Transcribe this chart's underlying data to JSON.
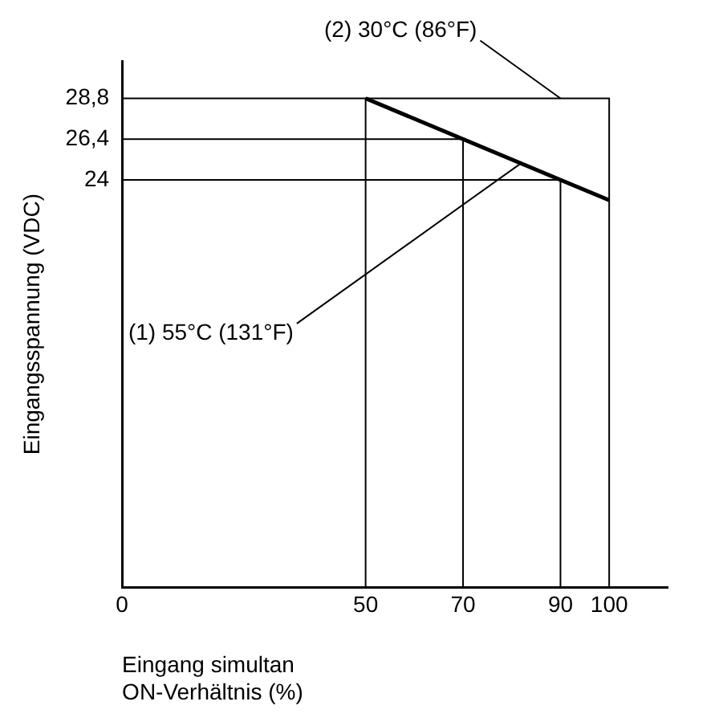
{
  "chart_data": {
    "type": "line",
    "xlabel": "Eingang simultan\nON-Verhältnis (%)",
    "ylabel": "Eingangsspannung (VDC)",
    "series": [
      {
        "color": "#000000",
        "x": [
          50,
          70,
          90,
          100
        ],
        "values": [
          28.8,
          26.4,
          24,
          22.8
        ]
      },
      {
        "color": "#000000",
        "x": [
          0,
          100,
          100
        ],
        "values": [
          28.8,
          28.8,
          0
        ]
      },
      {
        "color": "#000000",
        "x": [
          0,
          70,
          70
        ],
        "values": [
          26.4,
          26.4,
          0
        ]
      },
      {
        "color": "#000000",
        "x": [
          0,
          90,
          90
        ],
        "values": [
          24,
          24,
          0
        ]
      },
      {
        "color": "#000000",
        "x": [
          50,
          50
        ],
        "values": [
          28.8,
          0
        ]
      }
    ],
    "xlim": [
      0,
      112
    ],
    "xticks": [
      0,
      50,
      70,
      90,
      100
    ],
    "ylim": [
      0,
      31
    ],
    "yticks": [
      {
        "value": 24,
        "label": "24"
      },
      {
        "value": 26.4,
        "label": "26,4"
      },
      {
        "value": 28.8,
        "label": "28,8"
      }
    ],
    "grid": false,
    "legend": false,
    "marker": "none",
    "annotations": [
      {
        "text": "(2) 30°C (86°F)",
        "x": 90,
        "y": 28.8
      },
      {
        "text": "(1) 55°C (131°F)",
        "x": 82,
        "y": 25
      }
    ]
  }
}
